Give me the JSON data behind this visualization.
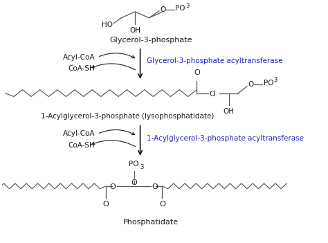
{
  "bg_color": "#ffffff",
  "black": "#1a1a1a",
  "blue": "#2222bb",
  "line_color": "#555555",
  "glycerol3p_label": "Glycerol-3-phosphate",
  "lysopa_label": "1-Acylglycerol-3-phosphate (lysophosphatidate)",
  "phosphatidate_label": "Phosphatidate",
  "enzyme1": "Glycerol-3-phosphate acyltransferase",
  "enzyme2": "1-Acylglycerol-3-phosphate acyltransferase",
  "acylcoa": "Acyl-CoA",
  "coash": "CoA-SH"
}
